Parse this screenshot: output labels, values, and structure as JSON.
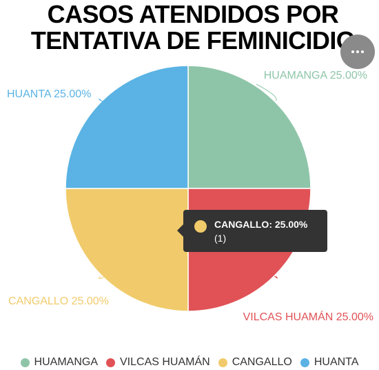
{
  "title": {
    "line1": "CASOS ATENDIDOS POR",
    "line2": "TENTATIVA DE FEMINICIDIO"
  },
  "menu": {
    "icon": "more-horizontal-icon"
  },
  "chart_data": {
    "type": "pie",
    "title": "CASOS ATENDIDOS POR TENTATIVA DE FEMINICIDIO",
    "legend_position": "bottom",
    "slices": [
      {
        "name": "HUAMANGA",
        "value": 1,
        "percent": 25.0,
        "label": "HUAMANGA 25.00%",
        "color": "#8ec5a8"
      },
      {
        "name": "VILCAS HUAMÁN",
        "value": 1,
        "percent": 25.0,
        "label": "VILCAS HUAMÁN 25.00%",
        "color": "#e05256"
      },
      {
        "name": "CANGALLO",
        "value": 1,
        "percent": 25.0,
        "label": "CANGALLO 25.00%",
        "color": "#f1cb6b"
      },
      {
        "name": "HUANTA",
        "value": 1,
        "percent": 25.0,
        "label": "HUANTA 25.00%",
        "color": "#5ab3e4"
      }
    ]
  },
  "tooltip": {
    "label": "CANGALLO: 25.00%",
    "count": "(1)",
    "color": "#f1cb6b"
  },
  "legend": [
    {
      "label": "HUAMANGA",
      "color": "#8ec5a8"
    },
    {
      "label": "VILCAS HUAMÁN",
      "color": "#e05256"
    },
    {
      "label": "CANGALLO",
      "color": "#f1cb6b"
    },
    {
      "label": "HUANTA",
      "color": "#5ab3e4"
    }
  ]
}
